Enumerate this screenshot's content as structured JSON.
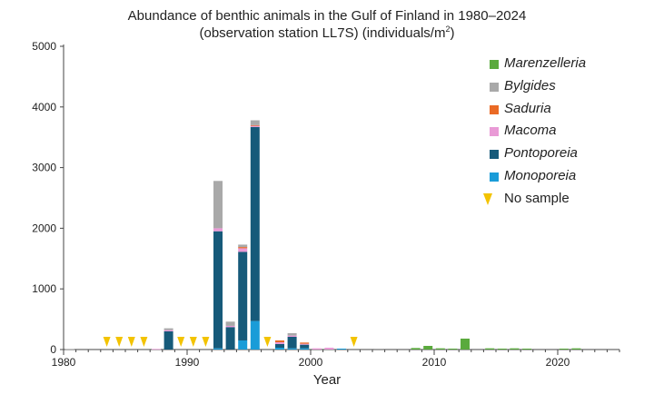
{
  "chart_data": {
    "type": "bar",
    "stacked": true,
    "title_line1": "Abundance of benthic animals in the Gulf of Finland in 1980–2024",
    "title_line2_text": "(observation station LL7S) (individuals/m",
    "title_line2_sup": "2",
    "title_line2_end": ")",
    "xlabel": "Year",
    "ylabel": "",
    "xlim": [
      1980,
      2025
    ],
    "ylim": [
      0,
      5000
    ],
    "y_ticks": [
      0,
      1000,
      2000,
      3000,
      4000,
      5000
    ],
    "x_ticks": [
      1980,
      1990,
      2000,
      2010,
      2020
    ],
    "grid": false,
    "legend_position": "top-right",
    "series": [
      {
        "name": "Monoporeia",
        "color": "#1a9cd8",
        "points": [
          [
            1992,
            20
          ],
          [
            1994,
            150
          ],
          [
            1995,
            470
          ],
          [
            1997,
            30
          ],
          [
            1998,
            20
          ],
          [
            1999,
            20
          ],
          [
            2002,
            15
          ]
        ]
      },
      {
        "name": "Pontoporeia",
        "color": "#165a7a",
        "points": [
          [
            1988,
            300
          ],
          [
            1992,
            1930
          ],
          [
            1993,
            370
          ],
          [
            1994,
            1460
          ],
          [
            1995,
            3200
          ],
          [
            1997,
            60
          ],
          [
            1998,
            190
          ],
          [
            1999,
            60
          ]
        ]
      },
      {
        "name": "Macoma",
        "color": "#e99ad6",
        "points": [
          [
            1987,
            10
          ],
          [
            1988,
            20
          ],
          [
            1992,
            50
          ],
          [
            1993,
            20
          ],
          [
            1994,
            60
          ],
          [
            1995,
            20
          ],
          [
            1997,
            30
          ],
          [
            1998,
            20
          ],
          [
            1999,
            15
          ],
          [
            2000,
            20
          ],
          [
            2001,
            30
          ]
        ]
      },
      {
        "name": "Saduria",
        "color": "#ea6a25",
        "points": [
          [
            1994,
            20
          ],
          [
            1995,
            10
          ],
          [
            1997,
            30
          ],
          [
            1999,
            20
          ]
        ]
      },
      {
        "name": "Bylgides",
        "color": "#a9a9a9",
        "points": [
          [
            1980,
            10
          ],
          [
            1988,
            30
          ],
          [
            1992,
            780
          ],
          [
            1993,
            70
          ],
          [
            1994,
            40
          ],
          [
            1995,
            80
          ],
          [
            1998,
            40
          ],
          [
            2005,
            15
          ]
        ]
      },
      {
        "name": "Marenzelleria",
        "color": "#5aaa3d",
        "points": [
          [
            2008,
            25
          ],
          [
            2009,
            60
          ],
          [
            2010,
            20
          ],
          [
            2011,
            15
          ],
          [
            2012,
            180
          ],
          [
            2014,
            20
          ],
          [
            2015,
            15
          ],
          [
            2016,
            20
          ],
          [
            2017,
            15
          ],
          [
            2020,
            15
          ],
          [
            2021,
            20
          ]
        ]
      }
    ],
    "no_sample": {
      "name": "No sample",
      "color": "#f3c300",
      "years": [
        1983,
        1984,
        1985,
        1986,
        1989,
        1990,
        1991,
        1996,
        2003
      ]
    }
  }
}
